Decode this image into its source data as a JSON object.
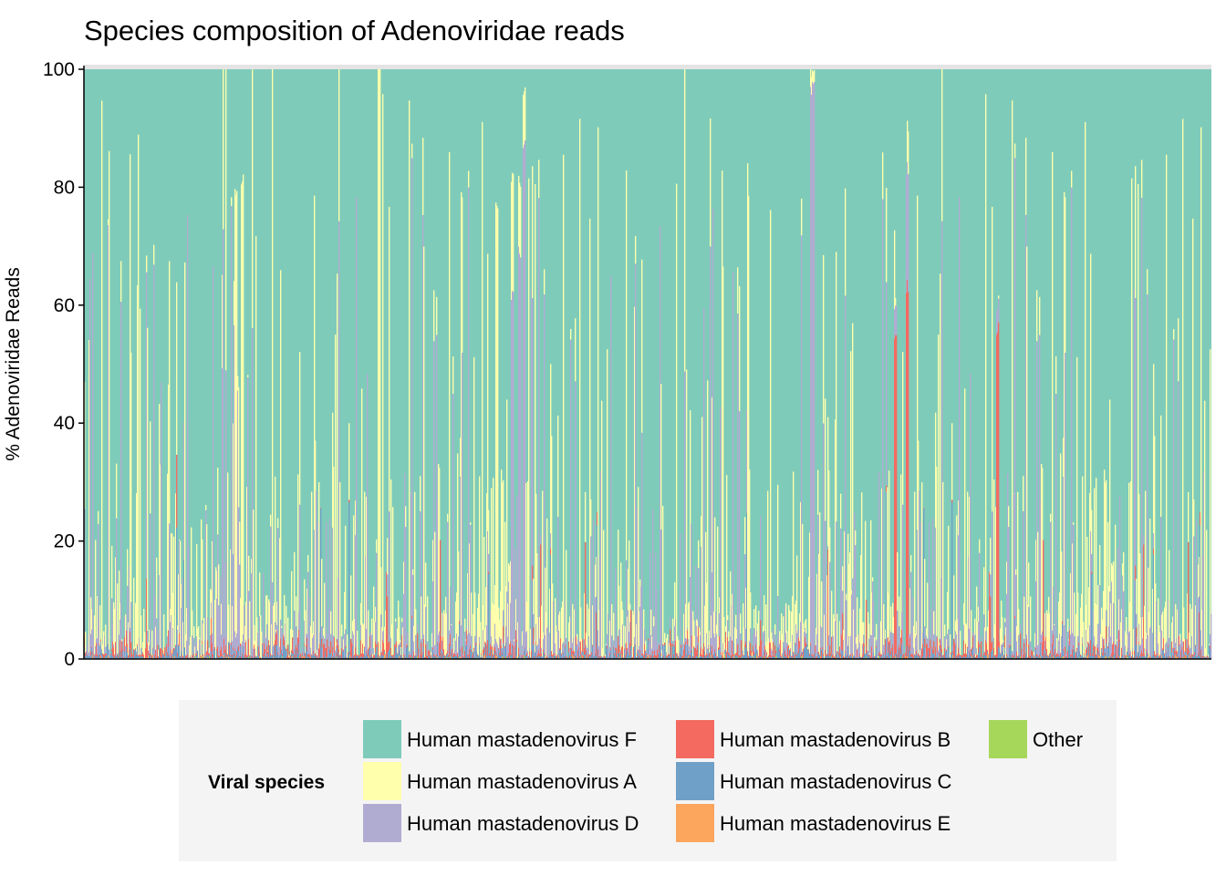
{
  "chart_data": {
    "type": "bar",
    "stacked": true,
    "title": "Species composition of Adenoviridae reads",
    "xlabel": "",
    "ylabel": "% Adenoviridae Reads",
    "ylim": [
      0,
      100
    ],
    "yticks": [
      0,
      20,
      40,
      60,
      80,
      100
    ],
    "n_samples": 1236,
    "grid": false,
    "legend_position": "bottom",
    "legend_title": "Viral species",
    "series": [
      {
        "name": "Other",
        "color": "#a6d75b"
      },
      {
        "name": "Human mastadenovirus E",
        "color": "#fca55d"
      },
      {
        "name": "Human mastadenovirus C",
        "color": "#6fa0c8"
      },
      {
        "name": "Human mastadenovirus B",
        "color": "#f46a60"
      },
      {
        "name": "Human mastadenovirus D",
        "color": "#b0acd1"
      },
      {
        "name": "Human mastadenovirus A",
        "color": "#ffffac"
      },
      {
        "name": "Human mastadenovirus F",
        "color": "#7fcbba"
      }
    ],
    "legend_order": [
      "Human mastadenovirus F",
      "Human mastadenovirus A",
      "Human mastadenovirus D",
      "Human mastadenovirus B",
      "Human mastadenovirus C",
      "Human mastadenovirus E",
      "Other"
    ],
    "sample_profiles_note": "per-sample stacks sum to 100; majority Human mastadenovirus F",
    "notable_samples": [
      {
        "pos": 0.135,
        "A": 75,
        "D": 3
      },
      {
        "pos": 0.14,
        "A": 78,
        "D": 2
      },
      {
        "pos": 0.262,
        "A": 100,
        "D": 0
      },
      {
        "pos": 0.366,
        "A": 74,
        "D": 2
      },
      {
        "pos": 0.38,
        "A": 20,
        "D": 60
      },
      {
        "pos": 0.386,
        "A": 12,
        "D": 68
      },
      {
        "pos": 0.39,
        "A": 9,
        "D": 86
      },
      {
        "pos": 0.645,
        "A": 3,
        "D": 95
      },
      {
        "pos": 0.647,
        "A": 2,
        "D": 97
      },
      {
        "pos": 0.72,
        "B": 54,
        "D": 5
      },
      {
        "pos": 0.73,
        "B": 62,
        "D": 20
      },
      {
        "pos": 0.81,
        "B": 55,
        "D": 4
      }
    ]
  }
}
